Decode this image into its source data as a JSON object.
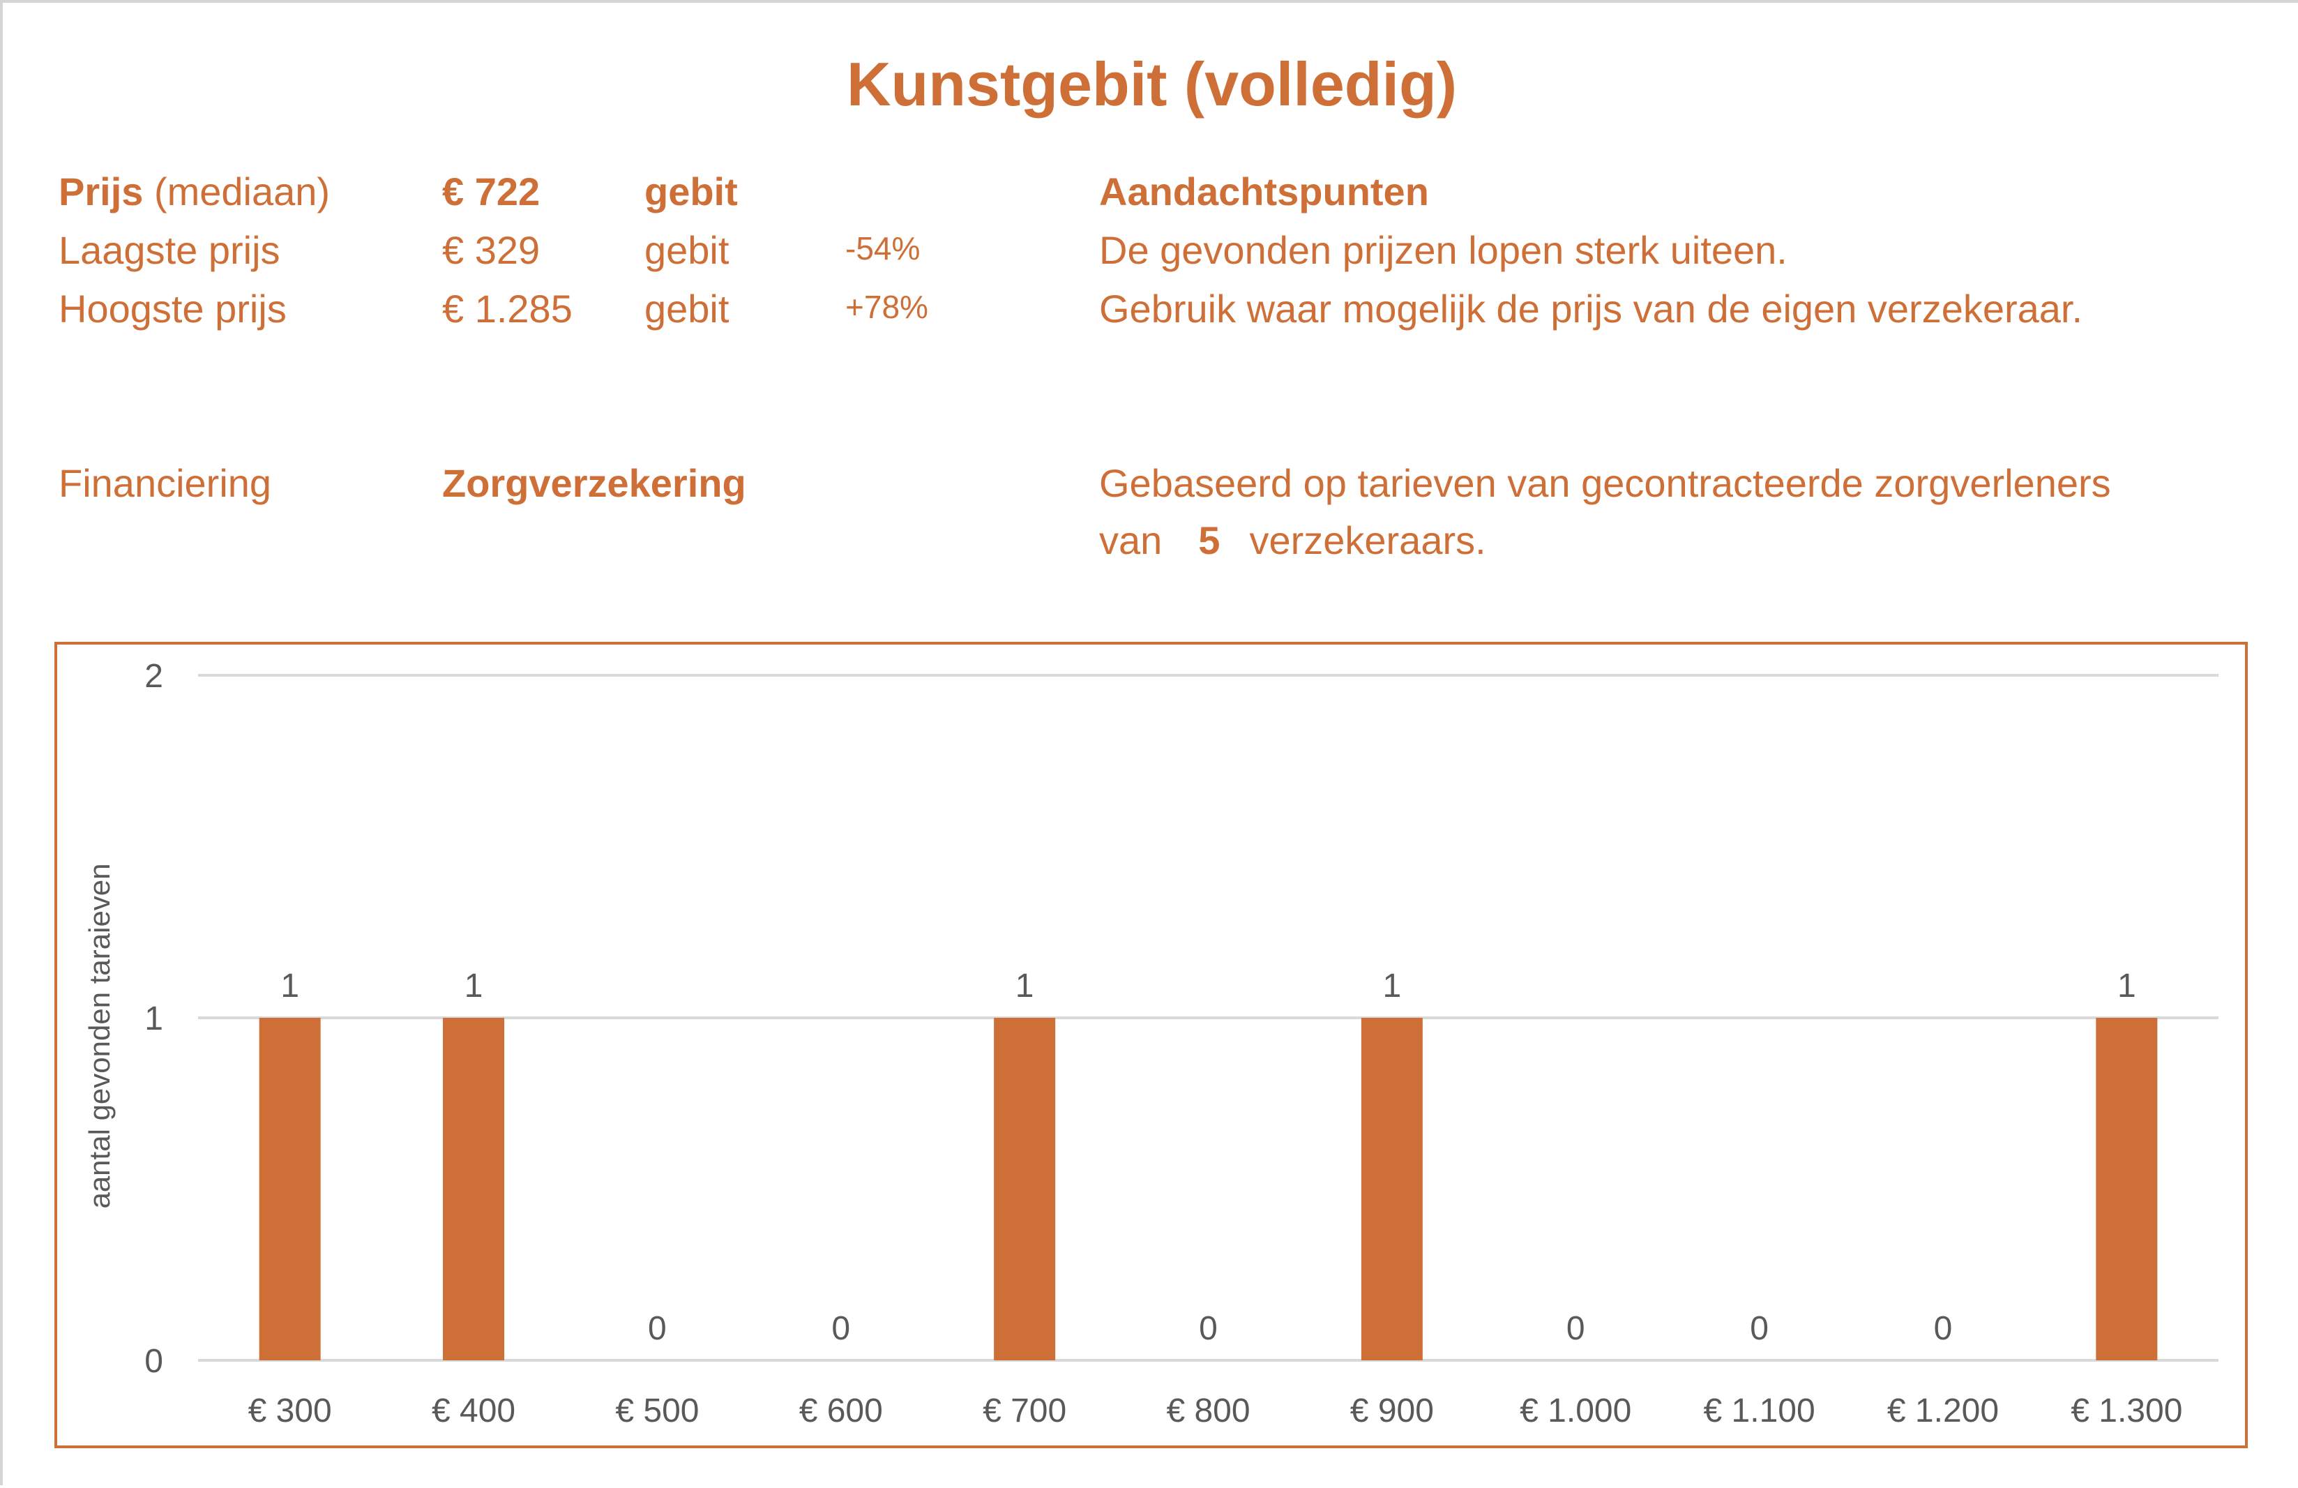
{
  "title": "Kunstgebit (volledig)",
  "summary": {
    "median": {
      "label_bold": "Prijs",
      "label_rest": " (mediaan)",
      "value": "€ 722",
      "unit": "gebit"
    },
    "lowest": {
      "label": "Laagste prijs",
      "value": "€ 329",
      "unit": "gebit",
      "pct": "-54%"
    },
    "highest": {
      "label": "Hoogste prijs",
      "value": "€ 1.285",
      "unit": "gebit",
      "pct": "+78%"
    },
    "financing": {
      "label": "Financiering",
      "value": "Zorgverzekering"
    }
  },
  "notes": {
    "heading": "Aandachtspunten",
    "line1": "De gevonden prijzen lopen sterk uiteen.",
    "line2": "Gebruik waar mogelijk de prijs van de eigen verzekeraar.",
    "basis_line1": "Gebaseerd op tarieven van gecontracteerde zorgverleners",
    "basis_pre": "van",
    "basis_count": "5",
    "basis_post": "verzekeraars."
  },
  "colors": {
    "accent": "#CE6F38",
    "text_gray": "#595959",
    "grid": "#D9D9D9"
  },
  "chart_data": {
    "type": "bar",
    "categories": [
      "€ 300",
      "€ 400",
      "€ 500",
      "€ 600",
      "€ 700",
      "€ 800",
      "€ 900",
      "€ 1.000",
      "€ 1.100",
      "€ 1.200",
      "€ 1.300"
    ],
    "values": [
      1,
      1,
      0,
      0,
      1,
      0,
      1,
      0,
      0,
      0,
      1
    ],
    "ylabel": "aantal gevonden taraieven",
    "ylim": [
      0,
      2
    ],
    "yticks": [
      "0",
      "1",
      "2"
    ],
    "grid": true,
    "data_labels": true,
    "bar_color": "#CE6F38"
  }
}
